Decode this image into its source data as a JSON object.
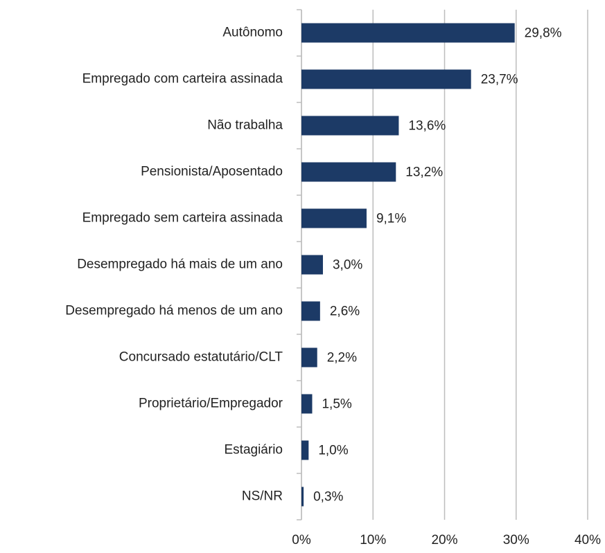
{
  "chart_data": {
    "type": "hbar",
    "categories": [
      "Autônomo",
      "Empregado com carteira assinada",
      "Não trabalha",
      "Pensionista/Aposentado",
      "Empregado sem carteira assinada",
      "Desempregado há mais de um ano",
      "Desempregado há menos de um ano",
      "Concursado estatutário/CLT",
      "Proprietário/Empregador",
      "Estagiário",
      "NS/NR"
    ],
    "values": [
      29.8,
      23.7,
      13.6,
      13.2,
      9.1,
      3.0,
      2.6,
      2.2,
      1.5,
      1.0,
      0.3
    ],
    "value_labels": [
      "29,8%",
      "23,7%",
      "13,6%",
      "13,2%",
      "9,1%",
      "3,0%",
      "2,6%",
      "2,2%",
      "1,5%",
      "1,0%",
      "0,3%"
    ],
    "color": "#1c3a66",
    "xlim": [
      0,
      40
    ],
    "xticks": [
      {
        "value": 0,
        "label": "0%"
      },
      {
        "value": 10,
        "label": "10%"
      },
      {
        "value": 20,
        "label": "20%"
      },
      {
        "value": 30,
        "label": "30%"
      },
      {
        "value": 40,
        "label": "40%"
      }
    ],
    "grid": true
  }
}
